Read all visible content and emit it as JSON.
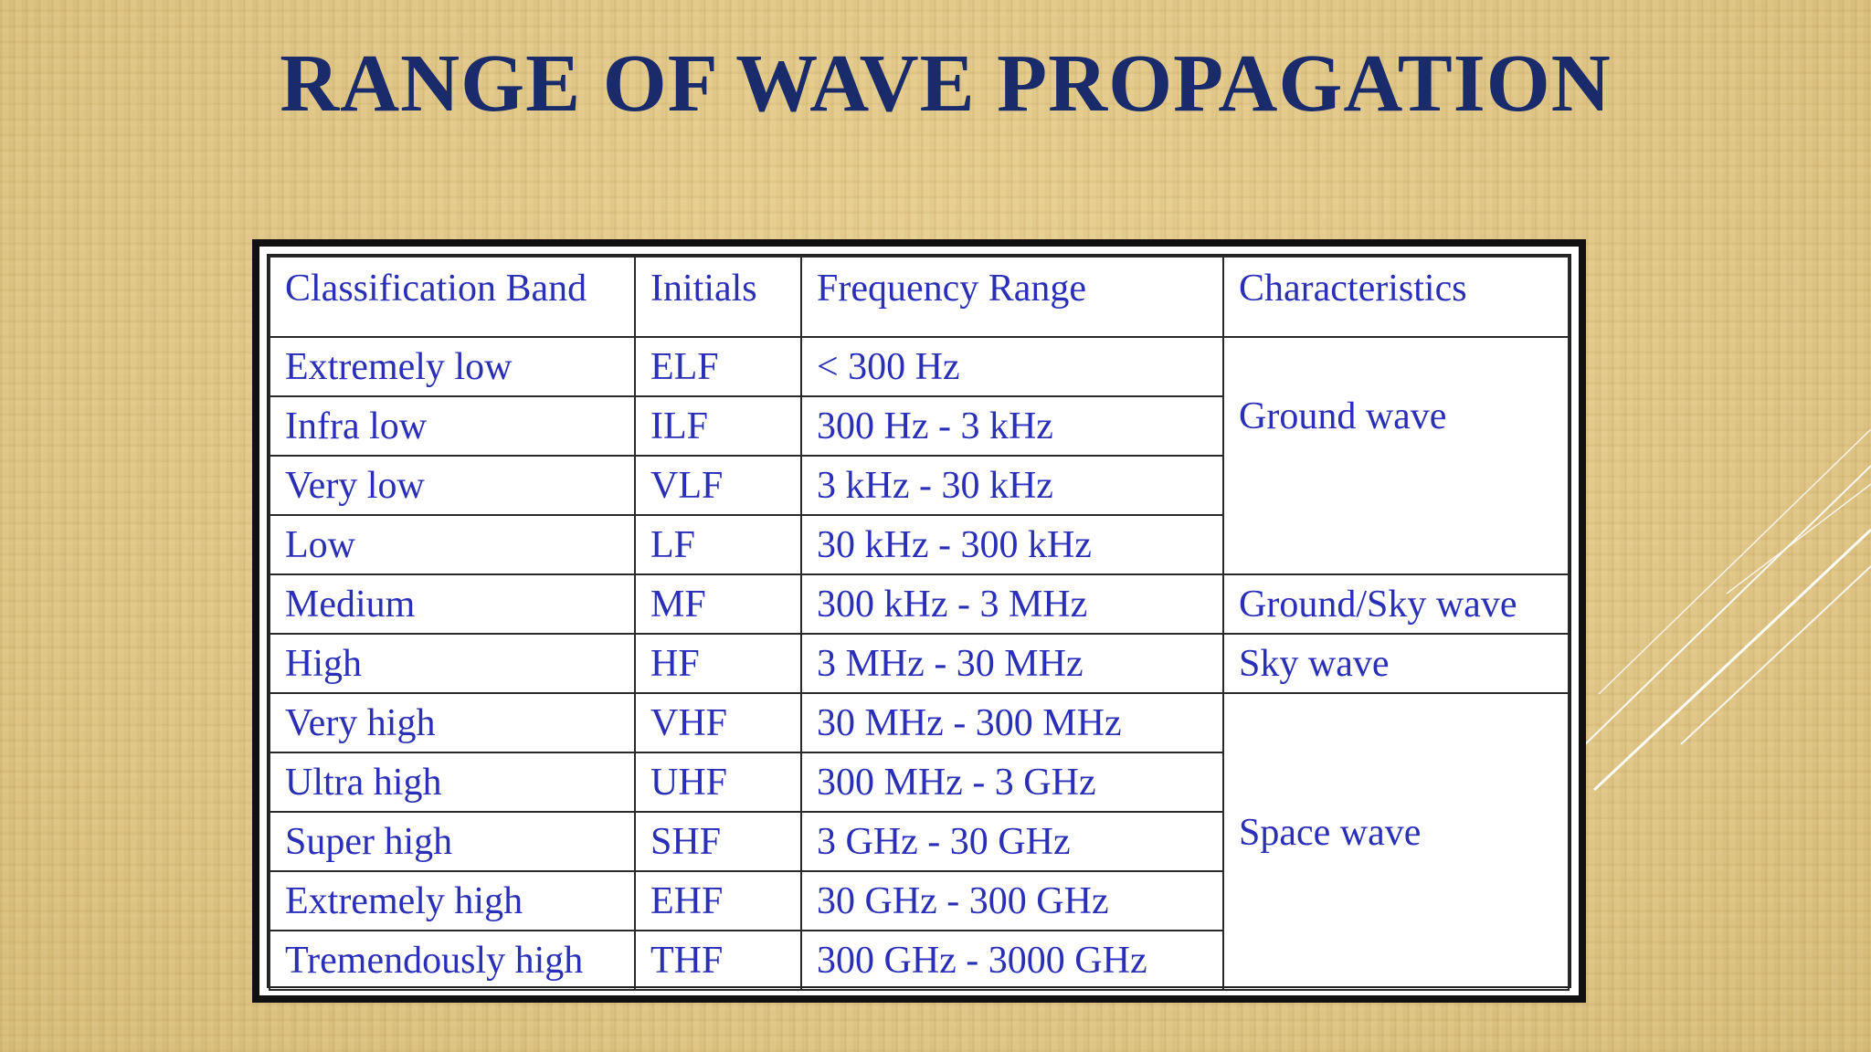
{
  "slide": {
    "title": "RANGE OF WAVE PROPAGATION"
  },
  "table": {
    "headers": [
      "Classification Band",
      "Initials",
      "Frequency Range",
      "Characteristics"
    ],
    "rows": [
      {
        "band": "Extremely low",
        "initials": "ELF",
        "range": "< 300 Hz"
      },
      {
        "band": "Infra low",
        "initials": "ILF",
        "range": "300 Hz - 3 kHz"
      },
      {
        "band": "Very low",
        "initials": "VLF",
        "range": "3 kHz - 30 kHz"
      },
      {
        "band": "Low",
        "initials": "LF",
        "range": "30 kHz - 300 kHz"
      },
      {
        "band": "Medium",
        "initials": "MF",
        "range": "300 kHz - 3 MHz"
      },
      {
        "band": "High",
        "initials": "HF",
        "range": "3 MHz - 30 MHz"
      },
      {
        "band": "Very high",
        "initials": "VHF",
        "range": "30 MHz - 300 MHz"
      },
      {
        "band": "Ultra high",
        "initials": "UHF",
        "range": "300 MHz - 3 GHz"
      },
      {
        "band": "Super high",
        "initials": "SHF",
        "range": "3 GHz - 30 GHz"
      },
      {
        "band": "Extremely high",
        "initials": "EHF",
        "range": "30 GHz - 300 GHz"
      },
      {
        "band": "Tremendously high",
        "initials": "THF",
        "range": "300 GHz - 3000 GHz"
      }
    ],
    "characteristics": {
      "ground": "Ground wave",
      "ground_sky": "Ground/Sky wave",
      "sky": "Sky wave",
      "space": "Space wave"
    }
  },
  "colors": {
    "title": "#1a2b6b",
    "table_text": "#2a2fb8",
    "background": "#e3cb8a"
  }
}
